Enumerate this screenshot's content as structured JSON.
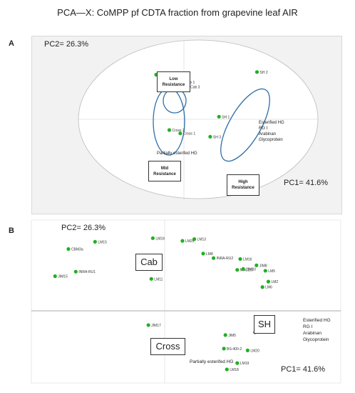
{
  "title": "PCA—X: CoMPP pf CDTA fraction from grapevine leaf AIR",
  "panels": [
    {
      "letter": "A",
      "pc2_label": "PC2= 26.3%",
      "pc1_label": "PC1= 41.6%",
      "boxes": {
        "low": [
          "Low",
          "Resistance"
        ],
        "mid": [
          "Mid",
          "Resistance"
        ],
        "high": [
          "High",
          "Resistance"
        ]
      },
      "notes": {
        "glyco": [
          "Esterified HG",
          "RG I",
          "Arabinan",
          "Glycoprotein"
        ],
        "partial": "Partially esterifed HG"
      }
    },
    {
      "letter": "B",
      "pc2_label": "PC2= 26.3%",
      "pc1_label": "PC1= 41.6%",
      "boxes": {
        "cab": "Cab",
        "sh": "SH",
        "cross": "Cross"
      },
      "notes": {
        "glyco": [
          "Esterified HG",
          "RG I",
          "Arabinan",
          "Glycoprotein"
        ],
        "partial": "Partially esterifed HG"
      }
    }
  ],
  "chart_data": [
    {
      "type": "scatter",
      "title": "",
      "xlabel": "PC1= 41.6%",
      "ylabel": "PC2= 26.3%",
      "xlim": [
        -1.6,
        1.6
      ],
      "ylim": [
        -1.2,
        1.2
      ],
      "grid": false,
      "points": [
        {
          "label": "Cab 2",
          "x": -0.15,
          "y": 0.65
        },
        {
          "label": "Cab 1",
          "x": -0.02,
          "y": 0.57
        },
        {
          "label": "Cab 3",
          "x": 0.05,
          "y": 0.5
        },
        {
          "label": "Cross 3",
          "x": -0.38,
          "y": 0.68
        },
        {
          "label": "Cross 2",
          "x": -0.2,
          "y": -0.15
        },
        {
          "label": "Cross 1",
          "x": -0.05,
          "y": -0.2
        },
        {
          "label": "SH 1",
          "x": 0.48,
          "y": 0.05
        },
        {
          "label": "SH 3",
          "x": 0.36,
          "y": -0.25
        },
        {
          "label": "SH 2",
          "x": 1.0,
          "y": 0.72
        }
      ]
    },
    {
      "type": "scatter",
      "title": "",
      "xlabel": "PC1= 41.6%",
      "ylabel": "PC2= 26.3%",
      "xlim": [
        -0.9,
        0.9
      ],
      "ylim": [
        -0.9,
        0.9
      ],
      "grid": false,
      "points": [
        {
          "label": "LM15",
          "x": -0.47,
          "y": 0.66
        },
        {
          "label": "CBM3a",
          "x": -0.65,
          "y": 0.58
        },
        {
          "label": "INRA-RU1",
          "x": -0.6,
          "y": 0.33
        },
        {
          "label": "JIM15",
          "x": -0.74,
          "y": 0.28
        },
        {
          "label": "LM24",
          "x": -0.08,
          "y": 0.7
        },
        {
          "label": "LM25",
          "x": 0.12,
          "y": 0.67
        },
        {
          "label": "LM13",
          "x": 0.2,
          "y": 0.69
        },
        {
          "label": "LM8",
          "x": 0.26,
          "y": 0.53
        },
        {
          "label": "INRA-RU2",
          "x": 0.33,
          "y": 0.48
        },
        {
          "label": "JIM18",
          "x": -0.15,
          "y": 0.39
        },
        {
          "label": "LM11",
          "x": -0.09,
          "y": 0.25
        },
        {
          "label": "LM16",
          "x": 0.51,
          "y": 0.47
        },
        {
          "label": "MAC207",
          "x": 0.49,
          "y": 0.35
        },
        {
          "label": "JIM13",
          "x": 0.53,
          "y": 0.36
        },
        {
          "label": "JIM8",
          "x": 0.62,
          "y": 0.4
        },
        {
          "label": "LM5",
          "x": 0.68,
          "y": 0.34
        },
        {
          "label": "LM2",
          "x": 0.7,
          "y": 0.22
        },
        {
          "label": "LM6",
          "x": 0.66,
          "y": 0.16
        },
        {
          "label": "JIM17",
          "x": -0.11,
          "y": -0.26
        },
        {
          "label": "JIM5",
          "x": 0.41,
          "y": -0.37
        },
        {
          "label": "JIM7",
          "x": 0.61,
          "y": -0.34
        },
        {
          "label": "BS-400-2",
          "x": 0.4,
          "y": -0.52
        },
        {
          "label": "LM20",
          "x": 0.56,
          "y": -0.54
        },
        {
          "label": "LM19",
          "x": 0.49,
          "y": -0.68
        },
        {
          "label": "LM18",
          "x": 0.42,
          "y": -0.75
        }
      ]
    }
  ]
}
